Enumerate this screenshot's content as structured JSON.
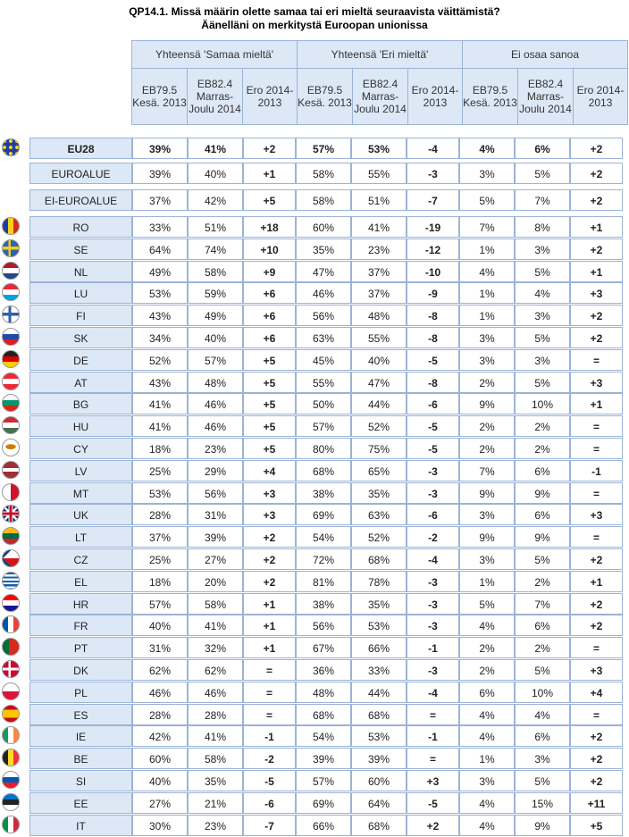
{
  "title": {
    "line1": "QP14.1. Missä määrin olette samaa tai eri mieltä seuraavista väittämistä?",
    "line2": "Äänelläni on merkitystä Euroopan unionissa"
  },
  "groups": [
    "Yhteensä 'Samaa mieltä'",
    "Yhteensä 'Eri mieltä'",
    "Ei osaa sanoa"
  ],
  "subheaders": [
    "EB79.5 Kesä. 2013",
    "EB82.4 Marras-Joulu 2014",
    "Ero 2014-2013"
  ],
  "rows": [
    {
      "name": "EU28",
      "flag": "eu",
      "v": [
        "39%",
        "41%",
        "+2",
        "57%",
        "53%",
        "-4",
        "4%",
        "6%",
        "+2"
      ]
    },
    {
      "name": "EUROALUE",
      "flag": "",
      "v": [
        "39%",
        "40%",
        "+1",
        "58%",
        "55%",
        "-3",
        "3%",
        "5%",
        "+2"
      ]
    },
    {
      "name": "EI-EUROALUE",
      "flag": "",
      "v": [
        "37%",
        "42%",
        "+5",
        "58%",
        "51%",
        "-7",
        "5%",
        "7%",
        "+2"
      ]
    },
    {
      "name": "RO",
      "flag": "ro",
      "v": [
        "33%",
        "51%",
        "+18",
        "60%",
        "41%",
        "-19",
        "7%",
        "8%",
        "+1"
      ]
    },
    {
      "name": "SE",
      "flag": "se",
      "v": [
        "64%",
        "74%",
        "+10",
        "35%",
        "23%",
        "-12",
        "1%",
        "3%",
        "+2"
      ]
    },
    {
      "name": "NL",
      "flag": "nl",
      "v": [
        "49%",
        "58%",
        "+9",
        "47%",
        "37%",
        "-10",
        "4%",
        "5%",
        "+1"
      ]
    },
    {
      "name": "LU",
      "flag": "lu",
      "v": [
        "53%",
        "59%",
        "+6",
        "46%",
        "37%",
        "-9",
        "1%",
        "4%",
        "+3"
      ]
    },
    {
      "name": "FI",
      "flag": "fi",
      "v": [
        "43%",
        "49%",
        "+6",
        "56%",
        "48%",
        "-8",
        "1%",
        "3%",
        "+2"
      ]
    },
    {
      "name": "SK",
      "flag": "sk",
      "v": [
        "34%",
        "40%",
        "+6",
        "63%",
        "55%",
        "-8",
        "3%",
        "5%",
        "+2"
      ]
    },
    {
      "name": "DE",
      "flag": "de",
      "v": [
        "52%",
        "57%",
        "+5",
        "45%",
        "40%",
        "-5",
        "3%",
        "3%",
        "="
      ]
    },
    {
      "name": "AT",
      "flag": "at",
      "v": [
        "43%",
        "48%",
        "+5",
        "55%",
        "47%",
        "-8",
        "2%",
        "5%",
        "+3"
      ]
    },
    {
      "name": "BG",
      "flag": "bg",
      "v": [
        "41%",
        "46%",
        "+5",
        "50%",
        "44%",
        "-6",
        "9%",
        "10%",
        "+1"
      ]
    },
    {
      "name": "HU",
      "flag": "hu",
      "v": [
        "41%",
        "46%",
        "+5",
        "57%",
        "52%",
        "-5",
        "2%",
        "2%",
        "="
      ]
    },
    {
      "name": "CY",
      "flag": "cy",
      "v": [
        "18%",
        "23%",
        "+5",
        "80%",
        "75%",
        "-5",
        "2%",
        "2%",
        "="
      ]
    },
    {
      "name": "LV",
      "flag": "lv",
      "v": [
        "25%",
        "29%",
        "+4",
        "68%",
        "65%",
        "-3",
        "7%",
        "6%",
        "-1"
      ]
    },
    {
      "name": "MT",
      "flag": "mt",
      "v": [
        "53%",
        "56%",
        "+3",
        "38%",
        "35%",
        "-3",
        "9%",
        "9%",
        "="
      ]
    },
    {
      "name": "UK",
      "flag": "uk",
      "v": [
        "28%",
        "31%",
        "+3",
        "69%",
        "63%",
        "-6",
        "3%",
        "6%",
        "+3"
      ]
    },
    {
      "name": "LT",
      "flag": "lt",
      "v": [
        "37%",
        "39%",
        "+2",
        "54%",
        "52%",
        "-2",
        "9%",
        "9%",
        "="
      ]
    },
    {
      "name": "CZ",
      "flag": "cz",
      "v": [
        "25%",
        "27%",
        "+2",
        "72%",
        "68%",
        "-4",
        "3%",
        "5%",
        "+2"
      ]
    },
    {
      "name": "EL",
      "flag": "el",
      "v": [
        "18%",
        "20%",
        "+2",
        "81%",
        "78%",
        "-3",
        "1%",
        "2%",
        "+1"
      ]
    },
    {
      "name": "HR",
      "flag": "hr",
      "v": [
        "57%",
        "58%",
        "+1",
        "38%",
        "35%",
        "-3",
        "5%",
        "7%",
        "+2"
      ]
    },
    {
      "name": "FR",
      "flag": "fr",
      "v": [
        "40%",
        "41%",
        "+1",
        "56%",
        "53%",
        "-3",
        "4%",
        "6%",
        "+2"
      ]
    },
    {
      "name": "PT",
      "flag": "pt",
      "v": [
        "31%",
        "32%",
        "+1",
        "67%",
        "66%",
        "-1",
        "2%",
        "2%",
        "="
      ]
    },
    {
      "name": "DK",
      "flag": "dk",
      "v": [
        "62%",
        "62%",
        "=",
        "36%",
        "33%",
        "-3",
        "2%",
        "5%",
        "+3"
      ]
    },
    {
      "name": "PL",
      "flag": "pl",
      "v": [
        "46%",
        "46%",
        "=",
        "48%",
        "44%",
        "-4",
        "6%",
        "10%",
        "+4"
      ]
    },
    {
      "name": "ES",
      "flag": "es",
      "v": [
        "28%",
        "28%",
        "=",
        "68%",
        "68%",
        "=",
        "4%",
        "4%",
        "="
      ]
    },
    {
      "name": "IE",
      "flag": "ie",
      "v": [
        "42%",
        "41%",
        "-1",
        "54%",
        "53%",
        "-1",
        "4%",
        "6%",
        "+2"
      ]
    },
    {
      "name": "BE",
      "flag": "be",
      "v": [
        "60%",
        "58%",
        "-2",
        "39%",
        "39%",
        "=",
        "1%",
        "3%",
        "+2"
      ]
    },
    {
      "name": "SI",
      "flag": "si",
      "v": [
        "40%",
        "35%",
        "-5",
        "57%",
        "60%",
        "+3",
        "3%",
        "5%",
        "+2"
      ]
    },
    {
      "name": "EE",
      "flag": "ee",
      "v": [
        "27%",
        "21%",
        "-6",
        "69%",
        "64%",
        "-5",
        "4%",
        "15%",
        "+11"
      ]
    },
    {
      "name": "IT",
      "flag": "it",
      "v": [
        "30%",
        "23%",
        "-7",
        "66%",
        "68%",
        "+2",
        "4%",
        "9%",
        "+5"
      ]
    }
  ]
}
